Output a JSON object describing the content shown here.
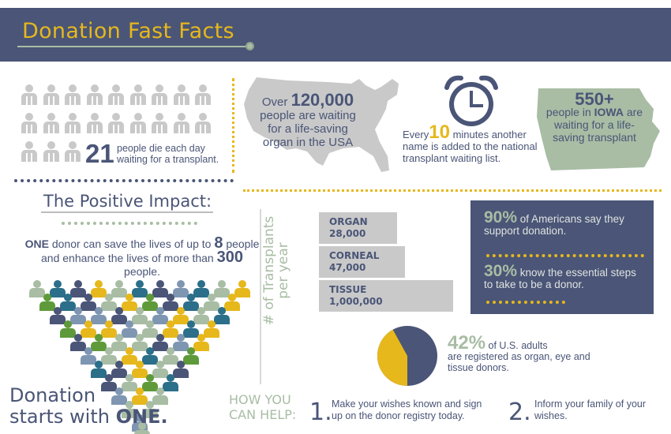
{
  "header": {
    "title": "Donation Fast Facts"
  },
  "deaths": {
    "number": "21",
    "text": "people die each day waiting for a transplant."
  },
  "waiting_usa": {
    "prefix": "Over",
    "number": "120,000",
    "text": "people are waiting for a life-saving organ in the USA"
  },
  "clock": {
    "prefix": "Every",
    "number": "10",
    "text": "minutes another name is added to the national transplant waiting list."
  },
  "iowa": {
    "number": "550+",
    "line1": "people in",
    "state": "IOWA",
    "line2": "are waiting for a life-saving transplant"
  },
  "impact": {
    "title": "The Positive Impact:",
    "one": "ONE",
    "text1": "donor can save the lives of up to",
    "eight": "8",
    "text2": "people and enhance the lives of more than",
    "three_hundred": "300",
    "text3": "people."
  },
  "donation_starts": {
    "line1": "Donation",
    "line2": "starts with",
    "one": "ONE."
  },
  "chart_data": {
    "type": "bar",
    "ylabel": "# of Transplants per year",
    "categories": [
      "ORGAN",
      "CORNEAL",
      "TISSUE"
    ],
    "labels": [
      "28,000",
      "47,000",
      "1,000,000"
    ],
    "values": [
      28000,
      47000,
      1000000
    ]
  },
  "support": {
    "pct": "90%",
    "text": "of Americans say they support donation."
  },
  "know": {
    "pct": "30%",
    "text": "know the essential steps to take to be a donor."
  },
  "registered": {
    "pct": "42%",
    "text1": "of U.S. adults",
    "text2": "are registered as organ, eye and tissue donors.",
    "pie_value": 0.42,
    "colors": {
      "registered": "#e6b81c",
      "rest": "#4a5577"
    }
  },
  "help": {
    "label1": "HOW YOU",
    "label2": "CAN HELP:",
    "steps": [
      {
        "num": "1.",
        "text": "Make your wishes known and sign up on the donor registry today."
      },
      {
        "num": "2.",
        "text": "Inform your family of your wishes."
      }
    ]
  },
  "colors": {
    "navy": "#4a5577",
    "gold": "#e6b81c",
    "sage": "#a8bda4",
    "gray": "#c9c9c9",
    "teal": "#2b6f8a",
    "green": "#5e9a3a"
  }
}
